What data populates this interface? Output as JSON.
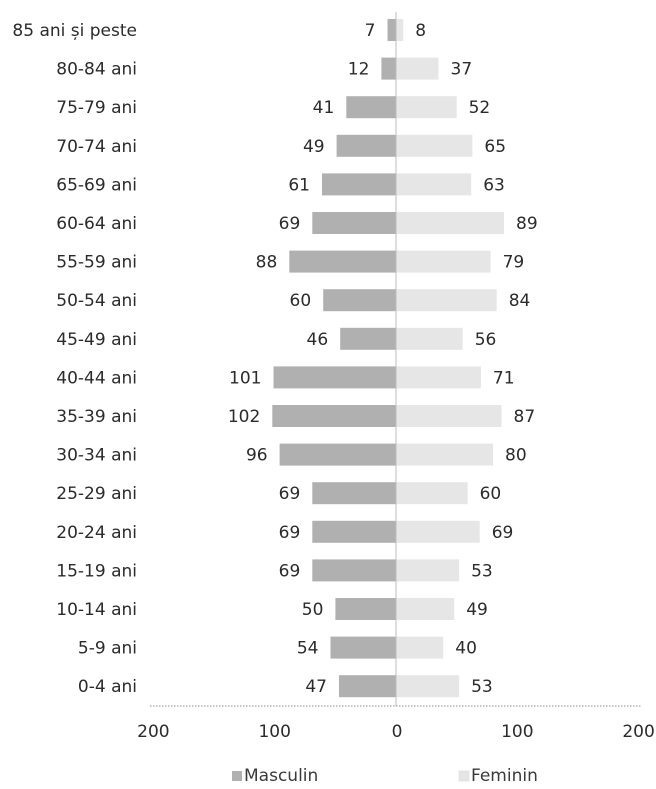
{
  "chart_data": {
    "type": "bar",
    "orientation": "horizontal-pyramid",
    "categories": [
      "85 ani și peste",
      "80-84 ani",
      "75-79 ani",
      "70-74 ani",
      "65-69 ani",
      "60-64 ani",
      "55-59 ani",
      "50-54 ani",
      "45-49 ani",
      "40-44 ani",
      "35-39 ani",
      "30-34 ani",
      "25-29 ani",
      "20-24 ani",
      "15-19 ani",
      "10-14 ani",
      "5-9 ani",
      "0-4 ani"
    ],
    "series": [
      {
        "name": "Masculin",
        "side": "left",
        "color": "#b0b0b0",
        "values": [
          7,
          12,
          41,
          49,
          61,
          69,
          88,
          60,
          46,
          101,
          102,
          96,
          69,
          69,
          69,
          50,
          54,
          47
        ],
        "bar_lengths": [
          7,
          12,
          41,
          49,
          61,
          69,
          88,
          60,
          46,
          101,
          102,
          96,
          69,
          69,
          69,
          50,
          54,
          47
        ]
      },
      {
        "name": "Feminin",
        "side": "right",
        "color": "#e6e6e6",
        "values": [
          8,
          37,
          52,
          65,
          63,
          89,
          79,
          84,
          56,
          71,
          87,
          80,
          60,
          69,
          53,
          49,
          40,
          53
        ],
        "bar_lengths": [
          6,
          35,
          50,
          63,
          62,
          89,
          78,
          83,
          55,
          70,
          87,
          80,
          59,
          69,
          52,
          48,
          39,
          52
        ]
      }
    ],
    "x_ticks": [
      {
        "value": -200,
        "label": "200"
      },
      {
        "value": -100,
        "label": "100"
      },
      {
        "value": 0,
        "label": "0"
      },
      {
        "value": 100,
        "label": "100"
      },
      {
        "value": 200,
        "label": "200"
      }
    ],
    "xlim": [
      -200,
      200
    ],
    "title": "",
    "xlabel": "",
    "ylabel": "",
    "grid": false,
    "legend_position": "bottom"
  }
}
